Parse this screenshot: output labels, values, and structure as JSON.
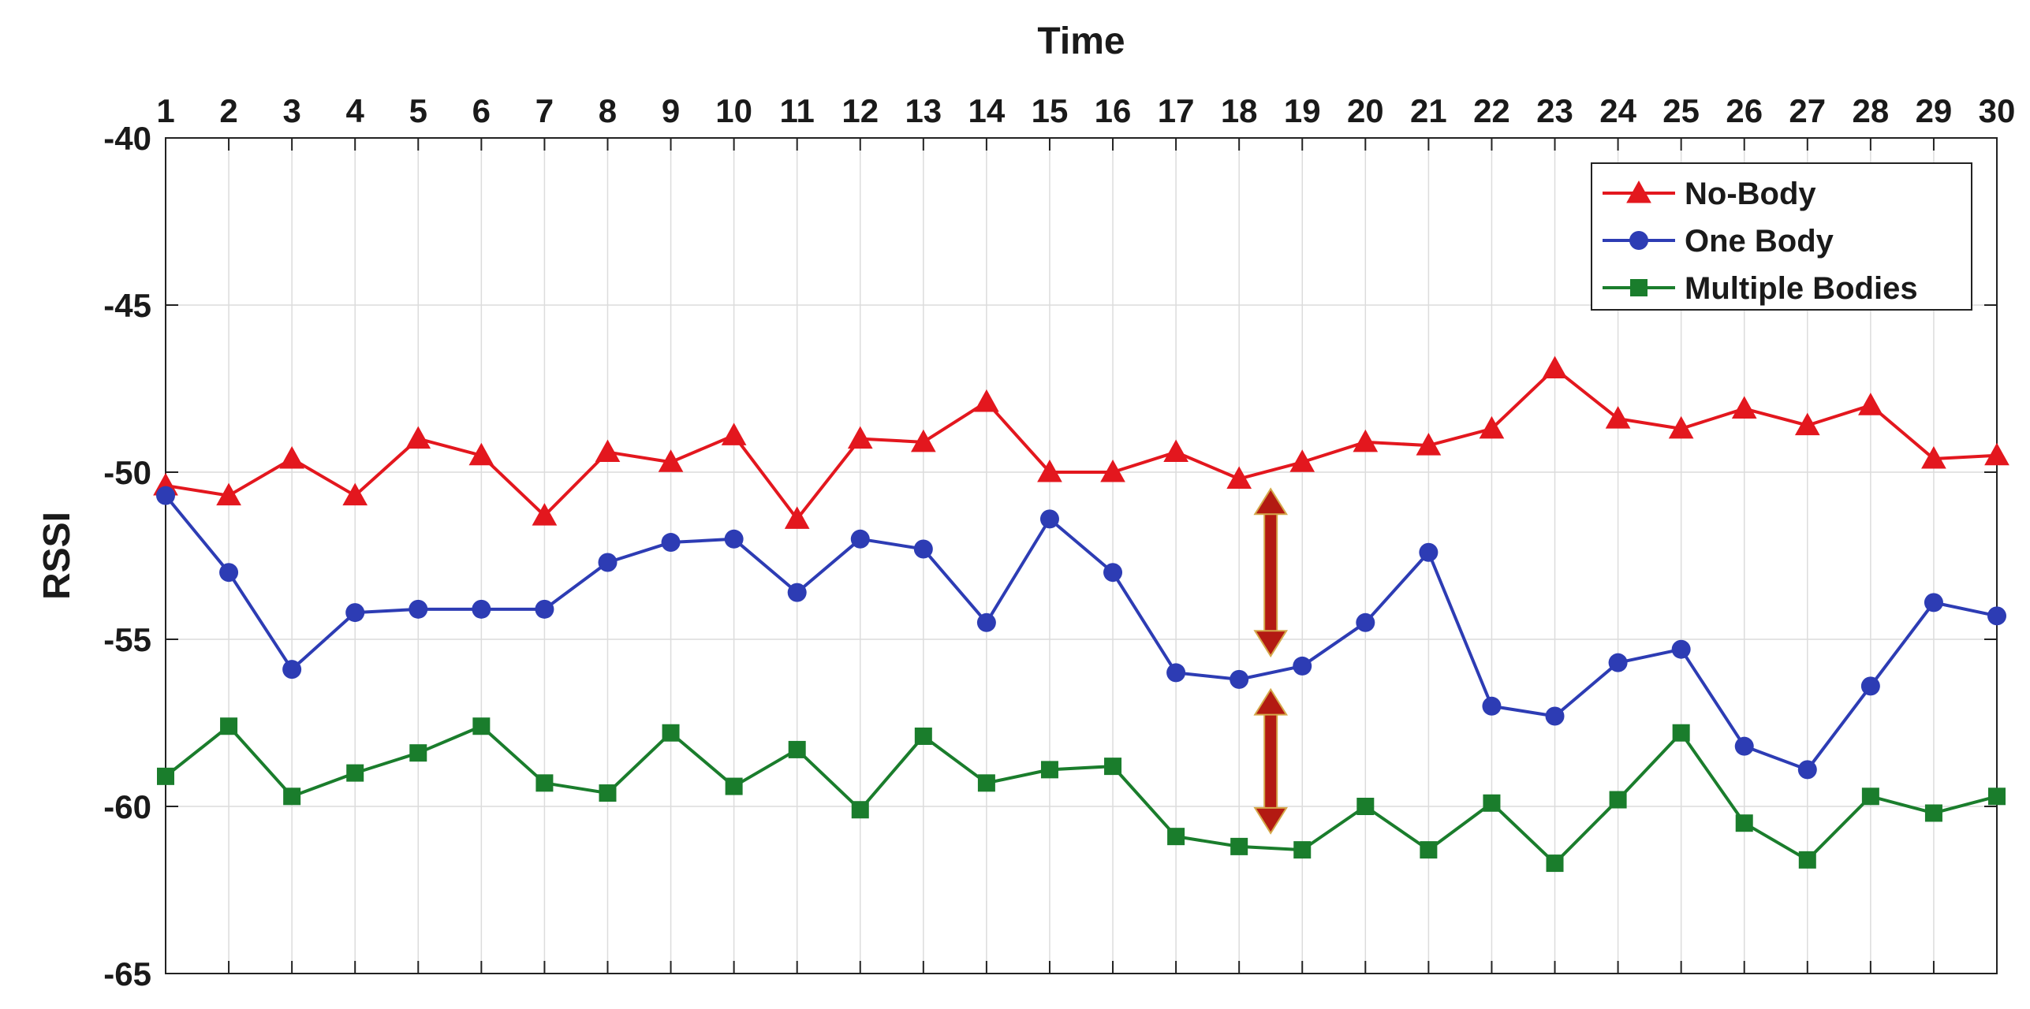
{
  "chart_data": {
    "type": "line",
    "xlabel": "Time",
    "ylabel": "RSSI",
    "x": [
      1,
      2,
      3,
      4,
      5,
      6,
      7,
      8,
      9,
      10,
      11,
      12,
      13,
      14,
      15,
      16,
      17,
      18,
      19,
      20,
      21,
      22,
      23,
      24,
      25,
      26,
      27,
      28,
      29,
      30
    ],
    "xlim": [
      1,
      30
    ],
    "ylim": [
      -65,
      -40
    ],
    "yticks": [
      -40,
      -45,
      -50,
      -55,
      -60,
      -65
    ],
    "x_axis_position": "top",
    "y_axis_direction": "inverted",
    "grid": true,
    "legend_position": "top-right",
    "series": [
      {
        "name": "No-Body",
        "color": "#e3171e",
        "marker": "triangle",
        "values": [
          -50.4,
          -50.7,
          -49.6,
          -50.7,
          -49.0,
          -49.5,
          -51.3,
          -49.4,
          -49.7,
          -48.9,
          -51.4,
          -49.0,
          -49.1,
          -47.9,
          -50.0,
          -50.0,
          -49.4,
          -50.2,
          -49.7,
          -49.1,
          -49.2,
          -48.7,
          -46.9,
          -48.4,
          -48.7,
          -48.1,
          -48.6,
          -48.0,
          -49.6,
          -49.5
        ]
      },
      {
        "name": "One Body",
        "color": "#2d3cb4",
        "marker": "circle",
        "values": [
          -50.7,
          -53.0,
          -55.9,
          -54.2,
          -54.1,
          -54.1,
          -54.1,
          -52.7,
          -52.1,
          -52.0,
          -53.6,
          -52.0,
          -52.3,
          -54.5,
          -51.4,
          -53.0,
          -56.0,
          -56.2,
          -55.8,
          -54.5,
          -52.4,
          -57.0,
          -57.3,
          -55.7,
          -55.3,
          -58.2,
          -58.9,
          -56.4,
          -53.9,
          -54.3
        ]
      },
      {
        "name": "Multiple Bodies",
        "color": "#1a7d2c",
        "marker": "square",
        "values": [
          -59.1,
          -57.6,
          -59.7,
          -59.0,
          -58.4,
          -57.6,
          -59.3,
          -59.6,
          -57.8,
          -59.4,
          -58.3,
          -60.1,
          -57.9,
          -59.3,
          -58.9,
          -58.8,
          -60.9,
          -61.2,
          -61.3,
          -60.0,
          -61.3,
          -59.9,
          -61.7,
          -59.8,
          -57.8,
          -60.5,
          -61.6,
          -59.7,
          -60.2,
          -59.7
        ]
      }
    ],
    "annotations": [
      {
        "type": "double-arrow",
        "x": 18.5,
        "y_from": -50.5,
        "y_to": -55.5,
        "color": "#b31a12"
      },
      {
        "type": "double-arrow",
        "x": 18.5,
        "y_from": -56.5,
        "y_to": -60.8,
        "color": "#b31a12"
      }
    ]
  }
}
